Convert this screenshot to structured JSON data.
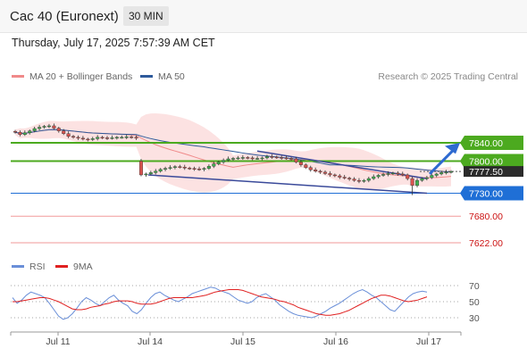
{
  "header": {
    "title": "Cac 40 (Euronext)",
    "timeframe": "30 MIN"
  },
  "datetime": "Thursday, July 17, 2025 7:57:39 AM CET",
  "legend": {
    "ma20": {
      "label": "MA 20 + Bollinger Bands",
      "color": "#f08a8a"
    },
    "ma50": {
      "label": "MA 50",
      "color": "#2e5a9b"
    }
  },
  "copyright": "Research © 2025 Trading Central",
  "rsi_legend": {
    "rsi": {
      "label": "RSI",
      "color": "#6a8fd8"
    },
    "ma9": {
      "label": "9MA",
      "color": "#e02020"
    }
  },
  "chart_data": {
    "type": "candlestick",
    "x_ticks": [
      "Jul 11",
      "Jul 14",
      "Jul 15",
      "Jul 16",
      "Jul 17"
    ],
    "price_levels": [
      {
        "value": 7840.0,
        "label": "7840.00",
        "style": "green-box",
        "color": "#4caa1f"
      },
      {
        "value": 7800.0,
        "label": "7800.00",
        "style": "green-box",
        "color": "#4caa1f"
      },
      {
        "value": 7777.5,
        "label": "7777.50",
        "style": "current-price",
        "color": "#333333"
      },
      {
        "value": 7730.0,
        "label": "7730.00",
        "style": "blue-box",
        "color": "#1f6fd6"
      },
      {
        "value": 7680.0,
        "label": "7680.00",
        "style": "red-text",
        "color": "#cc1111"
      },
      {
        "value": 7622.0,
        "label": "7622.00",
        "style": "red-text",
        "color": "#cc1111"
      }
    ],
    "ylim": [
      7600,
      7940
    ],
    "close": [
      7863,
      7858,
      7862,
      7866,
      7871,
      7874,
      7876,
      7877,
      7872,
      7866,
      7860,
      7854,
      7852,
      7850,
      7848,
      7847,
      7849,
      7852,
      7851,
      7850,
      7851,
      7852,
      7852,
      7853,
      7852,
      7850,
      7770,
      7772,
      7775,
      7778,
      7782,
      7784,
      7786,
      7788,
      7787,
      7785,
      7784,
      7783,
      7782,
      7784,
      7789,
      7794,
      7798,
      7802,
      7805,
      7806,
      7807,
      7808,
      7807,
      7806,
      7806,
      7807,
      7810,
      7809,
      7808,
      7807,
      7806,
      7805,
      7798,
      7792,
      7786,
      7781,
      7778,
      7776,
      7773,
      7770,
      7768,
      7765,
      7763,
      7761,
      7758,
      7756,
      7758,
      7762,
      7766,
      7769,
      7771,
      7773,
      7774,
      7772,
      7770,
      7762,
      7747,
      7758,
      7762,
      7764,
      7769,
      7772,
      7775,
      7776,
      7777.5
    ],
    "rsi": {
      "levels": [
        30,
        50,
        70
      ],
      "ylim": [
        20,
        80
      ],
      "values": [
        55,
        48,
        52,
        58,
        62,
        60,
        58,
        55,
        48,
        40,
        32,
        28,
        30,
        35,
        42,
        50,
        55,
        52,
        48,
        45,
        50,
        55,
        58,
        52,
        48,
        45,
        38,
        35,
        40,
        48,
        55,
        60,
        62,
        58,
        55,
        52,
        50,
        53,
        56,
        60,
        62,
        64,
        66,
        68,
        67,
        64,
        62,
        60,
        56,
        52,
        50,
        48,
        50,
        55,
        58,
        60,
        56,
        52,
        46,
        42,
        38,
        35,
        33,
        32,
        31,
        30,
        32,
        35,
        38,
        42,
        45,
        48,
        52,
        56,
        60,
        63,
        65,
        62,
        58,
        55,
        50,
        45,
        40,
        38,
        44,
        50,
        56,
        60,
        62,
        63,
        62
      ],
      "ma9": [
        50,
        50,
        51,
        52,
        53,
        54,
        55,
        55,
        54,
        52,
        50,
        47,
        44,
        41,
        40,
        40,
        41,
        43,
        44,
        45,
        47,
        48,
        50,
        51,
        51,
        51,
        50,
        48,
        47,
        47,
        47,
        48,
        50,
        52,
        54,
        55,
        55,
        55,
        55,
        55,
        56,
        57,
        58,
        60,
        62,
        63,
        64,
        65,
        65,
        65,
        64,
        62,
        60,
        58,
        56,
        55,
        54,
        53,
        51,
        50,
        48,
        46,
        43,
        41,
        39,
        37,
        35,
        34,
        33,
        33,
        34,
        35,
        37,
        39,
        42,
        45,
        48,
        51,
        54,
        56,
        58,
        58,
        57,
        55,
        53,
        51,
        50,
        51,
        52,
        54,
        56
      ]
    }
  }
}
